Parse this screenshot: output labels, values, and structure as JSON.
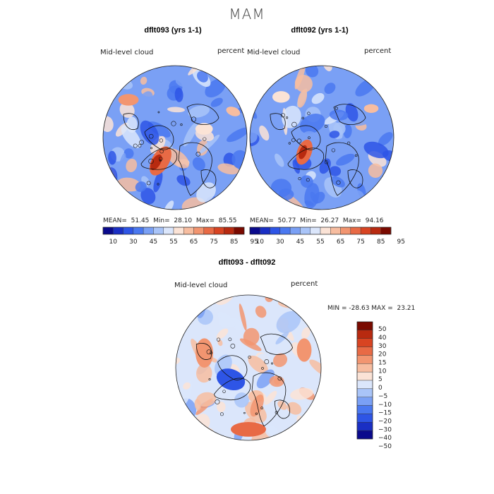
{
  "title": "MAM",
  "colors": {
    "abs_scale": [
      "#0a0a8c",
      "#1a2fc4",
      "#2e55e6",
      "#4a78f0",
      "#7aa0f5",
      "#a9c4f8",
      "#dbe6fb",
      "#fbe3d6",
      "#f7bda0",
      "#f29570",
      "#e86a45",
      "#d84422",
      "#b82a10",
      "#7a0a00"
    ],
    "diff_scale": [
      "#0a0a8c",
      "#1a2fc4",
      "#2e55e6",
      "#4a78f0",
      "#7aa0f5",
      "#a9c4f8",
      "#dbe6fb",
      "#fbe3d6",
      "#f7bda0",
      "#f29570",
      "#e86a45",
      "#d84422",
      "#b82a10",
      "#7a0a00"
    ]
  },
  "panels": [
    {
      "title": "dflt093 (yrs 1-1)",
      "var_label": "Mid-level cloud",
      "unit_label": "percent",
      "mean_label": "MEAN=",
      "mean": "51.45",
      "min_label": "Min=",
      "min": "28.10",
      "max_label": "Max=",
      "max": "85.55"
    },
    {
      "title": "dflt092 (yrs 1-1)",
      "var_label": "Mid-level cloud",
      "unit_label": "percent",
      "mean_label": "MEAN=",
      "mean": "50.77",
      "min_label": "Min=",
      "min": "26.27",
      "max_label": "Max=",
      "max": "94.16"
    }
  ],
  "abs_colorbar_ticks": [
    "10",
    "30",
    "45",
    "55",
    "65",
    "75",
    "85",
    "95"
  ],
  "diff": {
    "title": "dflt093 - dflt092",
    "var_label": "Mid-level cloud",
    "unit_label": "percent",
    "minmax_text": "MIN = -28.63 MAX =  23.21",
    "colorbar_ticks": [
      "50",
      "40",
      "30",
      "20",
      "15",
      "10",
      "5",
      "0",
      "−5",
      "−10",
      "−15",
      "−20",
      "−30",
      "−40",
      "−50"
    ]
  }
}
